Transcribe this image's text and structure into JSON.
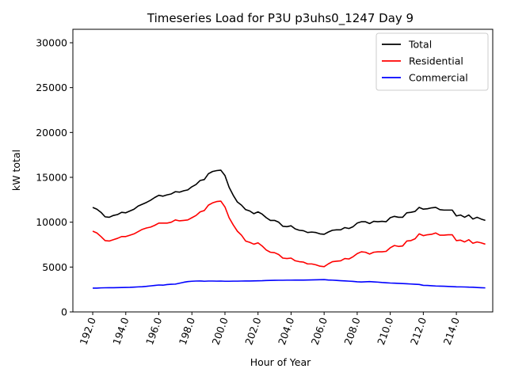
{
  "chart_data": {
    "type": "line",
    "title": "Timeseries Load for P3U p3uhs0_1247  Day 9",
    "xlabel": "Hour of Year",
    "ylabel": "kW total",
    "xlim": [
      190.8,
      216.2
    ],
    "ylim": [
      0,
      31500
    ],
    "xticks": [
      192,
      194,
      196,
      198,
      200,
      202,
      204,
      206,
      208,
      210,
      212,
      214
    ],
    "xtick_labels": [
      "192.0",
      "194.0",
      "196.0",
      "198.0",
      "200.0",
      "202.0",
      "204.0",
      "206.0",
      "208.0",
      "210.0",
      "212.0",
      "214.0"
    ],
    "yticks": [
      0,
      5000,
      10000,
      15000,
      20000,
      25000,
      30000
    ],
    "ytick_labels": [
      "0",
      "5000",
      "10000",
      "15000",
      "20000",
      "25000",
      "30000"
    ],
    "grid": false,
    "legend_position": "top-right",
    "x": [
      192.0,
      192.25,
      192.5,
      192.75,
      193.0,
      193.25,
      193.5,
      193.75,
      194.0,
      194.25,
      194.5,
      194.75,
      195.0,
      195.25,
      195.5,
      195.75,
      196.0,
      196.25,
      196.5,
      196.75,
      197.0,
      197.25,
      197.5,
      197.75,
      198.0,
      198.25,
      198.5,
      198.75,
      199.0,
      199.25,
      199.5,
      199.75,
      200.0,
      200.25,
      200.5,
      200.75,
      201.0,
      201.25,
      201.5,
      201.75,
      202.0,
      202.25,
      202.5,
      202.75,
      203.0,
      203.25,
      203.5,
      203.75,
      204.0,
      204.25,
      204.5,
      204.75,
      205.0,
      205.25,
      205.5,
      205.75,
      206.0,
      206.25,
      206.5,
      206.75,
      207.0,
      207.25,
      207.5,
      207.75,
      208.0,
      208.25,
      208.5,
      208.75,
      209.0,
      209.25,
      209.5,
      209.75,
      210.0,
      210.25,
      210.5,
      210.75,
      211.0,
      211.25,
      211.5,
      211.75,
      212.0,
      212.25,
      212.5,
      212.75,
      213.0,
      213.25,
      213.5,
      213.75,
      214.0,
      214.25,
      214.5,
      214.75,
      215.0,
      215.25,
      215.5,
      215.75
    ],
    "series": [
      {
        "name": "Total",
        "color": "#000000",
        "values": [
          11650,
          11450,
          11100,
          10600,
          10550,
          10750,
          10850,
          11100,
          11050,
          11250,
          11450,
          11800,
          12000,
          12200,
          12450,
          12750,
          13000,
          12900,
          13050,
          13150,
          13400,
          13350,
          13500,
          13600,
          13950,
          14200,
          14650,
          14750,
          15400,
          15650,
          15750,
          15800,
          15200,
          13900,
          13000,
          12250,
          11900,
          11400,
          11250,
          10950,
          11150,
          10900,
          10500,
          10200,
          10200,
          10000,
          9550,
          9500,
          9600,
          9250,
          9100,
          9050,
          8850,
          8900,
          8850,
          8700,
          8650,
          8900,
          9100,
          9150,
          9150,
          9400,
          9300,
          9500,
          9900,
          10050,
          10050,
          9850,
          10100,
          10050,
          10100,
          10050,
          10500,
          10650,
          10550,
          10550,
          11050,
          11100,
          11200,
          11650,
          11450,
          11500,
          11600,
          11650,
          11400,
          11350,
          11350,
          11350,
          10700,
          10800,
          10550,
          10800,
          10350,
          10550,
          10350,
          10200
        ]
      },
      {
        "name": "Residential",
        "color": "#ff0000",
        "values": [
          9000,
          8800,
          8400,
          7950,
          7900,
          8050,
          8200,
          8400,
          8400,
          8550,
          8700,
          8950,
          9200,
          9350,
          9450,
          9650,
          9900,
          9900,
          9900,
          10000,
          10250,
          10150,
          10200,
          10250,
          10500,
          10750,
          11150,
          11300,
          11900,
          12150,
          12300,
          12350,
          11700,
          10500,
          9700,
          9000,
          8550,
          7900,
          7750,
          7550,
          7700,
          7350,
          6900,
          6650,
          6600,
          6400,
          6000,
          5950,
          6000,
          5700,
          5600,
          5550,
          5350,
          5350,
          5250,
          5100,
          5050,
          5350,
          5600,
          5650,
          5700,
          5950,
          5900,
          6150,
          6500,
          6700,
          6650,
          6450,
          6650,
          6700,
          6700,
          6750,
          7150,
          7400,
          7300,
          7350,
          7900,
          7950,
          8150,
          8700,
          8500,
          8600,
          8650,
          8800,
          8550,
          8550,
          8600,
          8600,
          7950,
          8000,
          7800,
          8050,
          7650,
          7800,
          7700,
          7550
        ]
      },
      {
        "name": "Commercial",
        "color": "#0000ff",
        "values": [
          2650,
          2650,
          2680,
          2690,
          2700,
          2700,
          2710,
          2720,
          2730,
          2740,
          2760,
          2790,
          2810,
          2850,
          2900,
          2950,
          3000,
          2980,
          3050,
          3080,
          3100,
          3200,
          3300,
          3380,
          3420,
          3440,
          3450,
          3420,
          3440,
          3440,
          3430,
          3440,
          3420,
          3420,
          3430,
          3430,
          3440,
          3450,
          3450,
          3460,
          3470,
          3480,
          3500,
          3510,
          3520,
          3530,
          3530,
          3540,
          3540,
          3550,
          3550,
          3550,
          3560,
          3570,
          3580,
          3590,
          3600,
          3560,
          3540,
          3510,
          3480,
          3460,
          3430,
          3400,
          3360,
          3340,
          3360,
          3380,
          3350,
          3320,
          3280,
          3250,
          3220,
          3200,
          3180,
          3160,
          3140,
          3110,
          3080,
          3060,
          2960,
          2950,
          2920,
          2890,
          2870,
          2860,
          2840,
          2820,
          2800,
          2790,
          2780,
          2760,
          2750,
          2720,
          2700,
          2680
        ]
      }
    ]
  }
}
